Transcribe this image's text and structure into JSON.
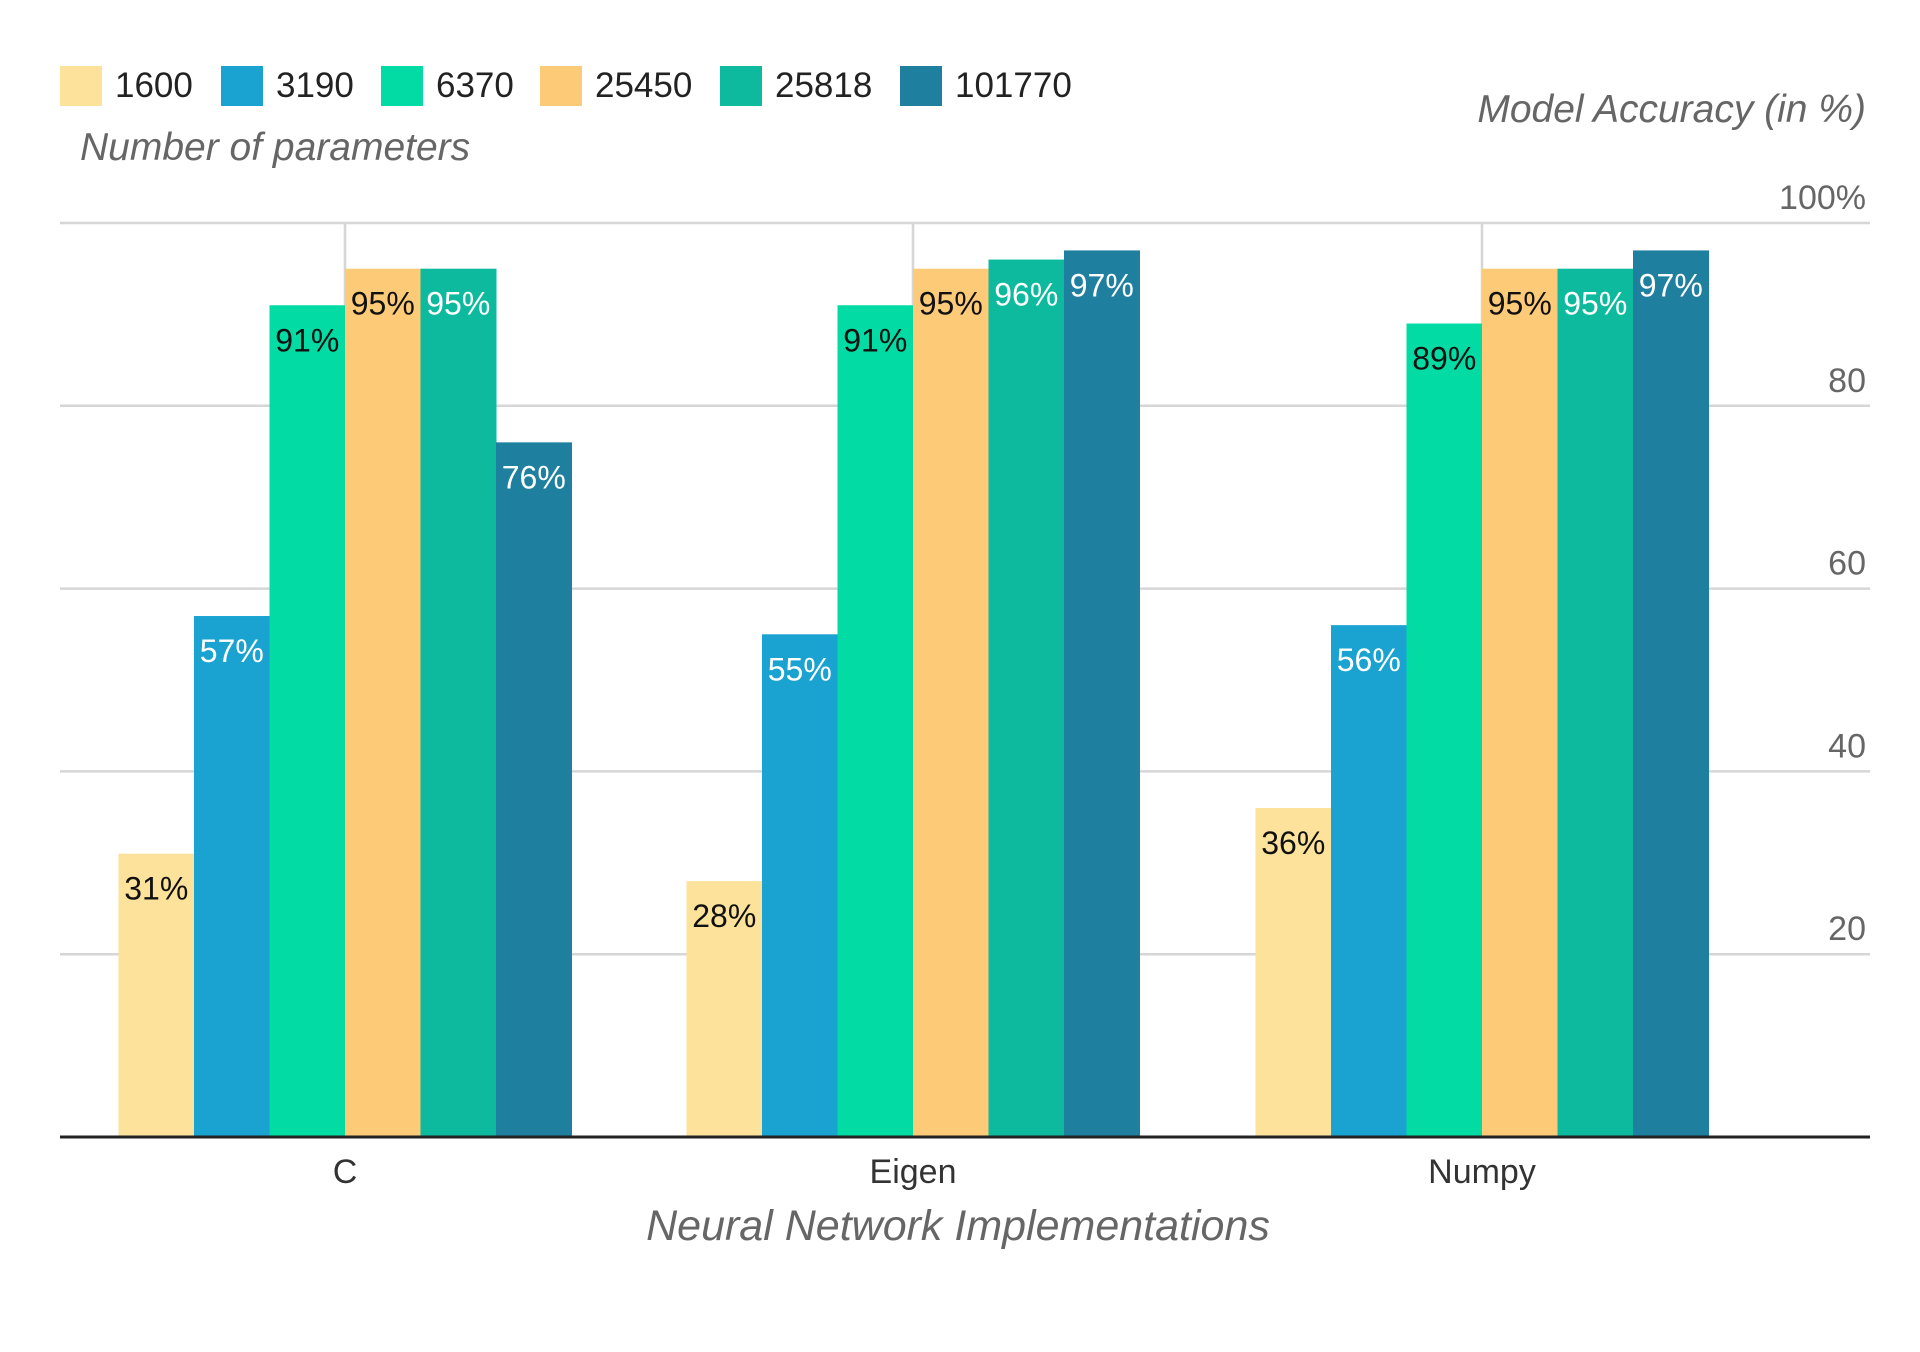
{
  "chart_data": {
    "type": "bar",
    "legend_title": "Number of parameters",
    "legend_position": "top-left",
    "xlabel": "Neural Network Implementations",
    "ylabel": "Model Accuracy (in %)",
    "categories": [
      "C",
      "Eigen",
      "Numpy"
    ],
    "ylim": [
      0,
      100
    ],
    "yticks": [
      20,
      40,
      60,
      80,
      100
    ],
    "ytick_labels": [
      "20",
      "40",
      "60",
      "80",
      "100%"
    ],
    "grid": true,
    "series": [
      {
        "name": "1600",
        "color": "#FDE29C",
        "values": [
          31,
          28,
          36
        ],
        "labels": [
          "31%",
          "28%",
          "36%"
        ]
      },
      {
        "name": "3190",
        "color": "#1AA2D0",
        "values": [
          57,
          55,
          56
        ],
        "labels": [
          "57%",
          "55%",
          "56%"
        ]
      },
      {
        "name": "6370",
        "color": "#02DBA3",
        "values": [
          91,
          91,
          89
        ],
        "labels": [
          "91%",
          "91%",
          "89%"
        ]
      },
      {
        "name": "25450",
        "color": "#FDCA78",
        "values": [
          95,
          95,
          95
        ],
        "labels": [
          "95%",
          "95%",
          "95%"
        ]
      },
      {
        "name": "25818",
        "color": "#0DBA9D",
        "values": [
          95,
          96,
          95
        ],
        "labels": [
          "95%",
          "96%",
          "95%"
        ]
      },
      {
        "name": "101770",
        "color": "#1E7F9F",
        "values": [
          76,
          97,
          97
        ],
        "labels": [
          "76%",
          "97%",
          "97%"
        ]
      }
    ]
  }
}
